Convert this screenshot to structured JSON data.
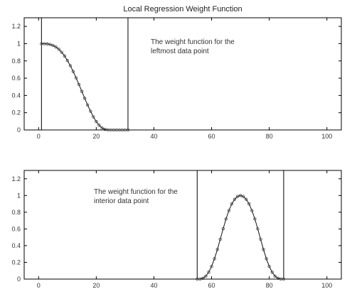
{
  "title": "Local Regression Weight Function",
  "chart_data": [
    {
      "type": "line",
      "xlim": [
        -5,
        105
      ],
      "ylim": [
        0,
        1.3
      ],
      "xticks": [
        "0",
        "20",
        "40",
        "60",
        "80",
        "100"
      ],
      "yticks": [
        "0",
        "0.2",
        "0.4",
        "0.6",
        "0.8",
        "1",
        "1.2"
      ],
      "annotation": [
        "The weight function for the",
        "leftmost data point"
      ],
      "vlines": [
        1,
        31
      ],
      "series": [
        {
          "x": [
            1,
            2,
            3,
            4,
            5,
            6,
            7,
            8,
            9,
            10,
            11,
            12,
            13,
            14,
            15,
            16,
            17,
            18,
            19,
            20,
            21,
            22,
            23,
            24,
            25,
            26,
            27,
            28,
            29,
            30,
            31
          ],
          "y": [
            1.0,
            0.999,
            0.997,
            0.991,
            0.979,
            0.961,
            0.935,
            0.9,
            0.857,
            0.805,
            0.745,
            0.677,
            0.604,
            0.527,
            0.447,
            0.367,
            0.289,
            0.217,
            0.152,
            0.097,
            0.054,
            0.024,
            0.007,
            0.001,
            0.0,
            0.0,
            0.0,
            0.0,
            0.0,
            0.0,
            0.0
          ]
        }
      ]
    },
    {
      "type": "line",
      "xlim": [
        -5,
        105
      ],
      "ylim": [
        0,
        1.3
      ],
      "xticks": [
        "0",
        "20",
        "40",
        "60",
        "80",
        "100"
      ],
      "yticks": [
        "0",
        "0.2",
        "0.4",
        "0.6",
        "0.8",
        "1",
        "1.2"
      ],
      "annotation": [
        "The weight function for the",
        "interior data point"
      ],
      "vlines": [
        55,
        85
      ],
      "series": [
        {
          "x": [
            55,
            56,
            57,
            58,
            59,
            60,
            61,
            62,
            63,
            64,
            65,
            66,
            67,
            68,
            69,
            70,
            71,
            72,
            73,
            74,
            75,
            76,
            77,
            78,
            79,
            80,
            81,
            82,
            83,
            84,
            85
          ],
          "y": [
            0.0,
            0.001,
            0.01,
            0.035,
            0.082,
            0.152,
            0.244,
            0.354,
            0.476,
            0.602,
            0.719,
            0.82,
            0.899,
            0.955,
            0.988,
            1.0,
            0.988,
            0.955,
            0.899,
            0.82,
            0.719,
            0.602,
            0.476,
            0.354,
            0.244,
            0.152,
            0.082,
            0.035,
            0.01,
            0.001,
            0.0
          ]
        }
      ]
    }
  ]
}
